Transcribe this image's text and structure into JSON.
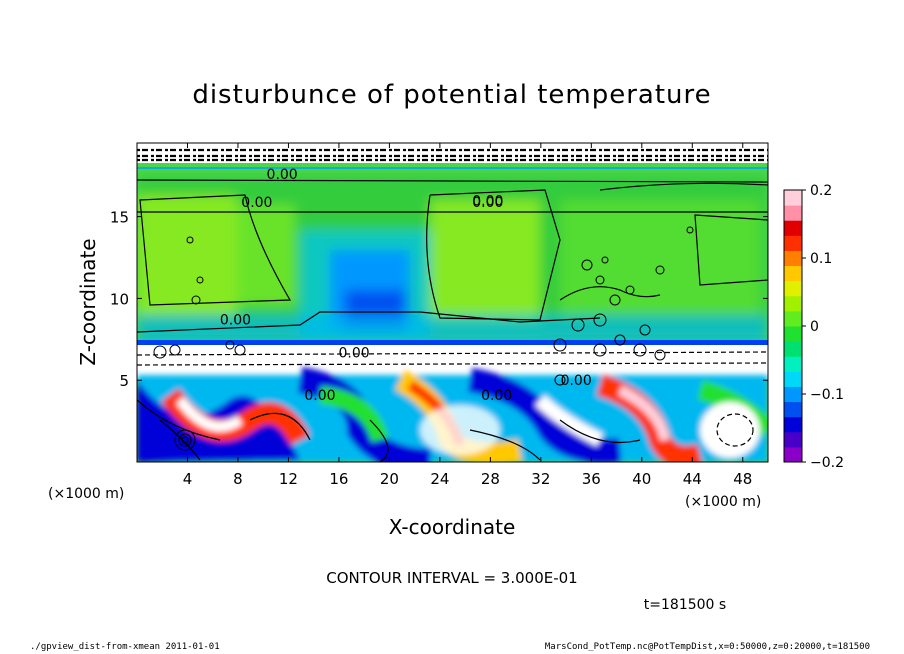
{
  "chart_data": {
    "type": "heatmap",
    "title": "disturbunce of potential temperature",
    "xlabel": "X-coordinate",
    "ylabel": "Z-coordinate",
    "x_unit_left": "(×1000 m)",
    "x_unit_right": "(×1000 m)",
    "x_ticks": [
      "4",
      "8",
      "12",
      "16",
      "20",
      "24",
      "28",
      "32",
      "36",
      "40",
      "44",
      "48"
    ],
    "y_ticks": [
      "5",
      "10",
      "15"
    ],
    "xlim": [
      0,
      50
    ],
    "ylim": [
      0,
      19.5
    ],
    "colorbar": {
      "min": -0.2,
      "max": 0.2,
      "ticks": [
        "0.2",
        "0.1",
        "0",
        "−0.1",
        "−0.2"
      ],
      "colors": [
        "#8b00c8",
        "#4800c8",
        "#0000d8",
        "#0050f0",
        "#0098ff",
        "#00d8f8",
        "#00f0c0",
        "#00e070",
        "#20e030",
        "#60ec20",
        "#a0f000",
        "#e0f000",
        "#ffc800",
        "#ff8000",
        "#ff3000",
        "#e00000",
        "#ff90a8",
        "#ffd0dc"
      ]
    },
    "contour_labels": [
      {
        "text": "0.00",
        "x": 11.5,
        "z": 17.6
      },
      {
        "text": "0.00",
        "x": 9.5,
        "z": 15.9
      },
      {
        "text": "0.00",
        "x": 27.8,
        "z": 15.9
      },
      {
        "text": "0.00",
        "x": 27.8,
        "z": 16.0
      },
      {
        "text": "0.00",
        "x": 7.8,
        "z": 8.7
      },
      {
        "text": "0.00",
        "x": 17.2,
        "z": 6.7
      },
      {
        "text": "0.00",
        "x": 14.5,
        "z": 4.1
      },
      {
        "text": "0.00",
        "x": 28.5,
        "z": 4.1
      },
      {
        "text": "0.00",
        "x": 34.8,
        "z": 5.0
      }
    ],
    "annotation": "CONTOUR INTERVAL = 3.000E-01",
    "time_label": "t=181500 s"
  },
  "footer": {
    "left": "./gpview_dist-from-xmean   2011-01-01",
    "right": "MarsCond_PotTemp.nc@PotTempDist,x=0:50000,z=0:20000,t=181500"
  }
}
